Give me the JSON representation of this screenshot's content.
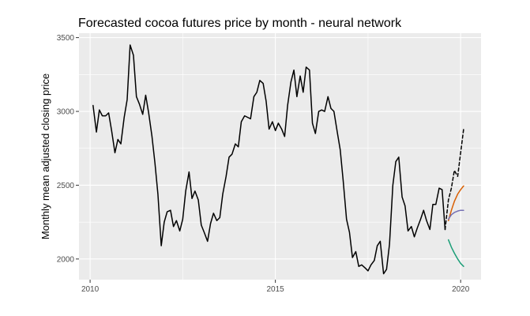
{
  "chart_data": {
    "type": "line",
    "title": "Forecasted cocoa futures price by month - neural network",
    "xlabel": "",
    "ylabel": "Monthly mean adjusted closing price",
    "xlim": [
      2009.7,
      2020.55
    ],
    "ylim": [
      1860,
      3530
    ],
    "xticks": [
      2010,
      2015,
      2020
    ],
    "xtick_labels": [
      "2010",
      "2015",
      "2020"
    ],
    "yticks": [
      2000,
      2500,
      3000,
      3500
    ],
    "ytick_labels": [
      "2000",
      "2500",
      "3000",
      "3500"
    ],
    "grid": true,
    "legend": "none",
    "colors": {
      "panel": "#ebebeb",
      "grid": "#ffffff",
      "history": "#000000",
      "dashed": "#000000",
      "orange": "#d95f02",
      "purple": "#7570b3",
      "green": "#1b9e77"
    },
    "series": [
      {
        "style": "solid",
        "color": "#000000",
        "x": [
          2010.08,
          2010.17,
          2010.25,
          2010.33,
          2010.42,
          2010.5,
          2010.58,
          2010.67,
          2010.75,
          2010.83,
          2010.92,
          2011.0,
          2011.08,
          2011.17,
          2011.25,
          2011.33,
          2011.42,
          2011.5,
          2011.58,
          2011.67,
          2011.75,
          2011.83,
          2011.92,
          2012.0,
          2012.08,
          2012.17,
          2012.25,
          2012.33,
          2012.42,
          2012.5,
          2012.58,
          2012.67,
          2012.75,
          2012.83,
          2012.92,
          2013.0,
          2013.08,
          2013.17,
          2013.25,
          2013.33,
          2013.42,
          2013.5,
          2013.58,
          2013.67,
          2013.75,
          2013.83,
          2013.92,
          2014.0,
          2014.08,
          2014.17,
          2014.25,
          2014.33,
          2014.42,
          2014.5,
          2014.58,
          2014.67,
          2014.75,
          2014.83,
          2014.92,
          2015.0,
          2015.08,
          2015.17,
          2015.25,
          2015.33,
          2015.42,
          2015.5,
          2015.58,
          2015.67,
          2015.75,
          2015.83,
          2015.92,
          2016.0,
          2016.08,
          2016.17,
          2016.25,
          2016.33,
          2016.42,
          2016.5,
          2016.58,
          2016.67,
          2016.75,
          2016.83,
          2016.92,
          2017.0,
          2017.08,
          2017.17,
          2017.25,
          2017.33,
          2017.42,
          2017.5,
          2017.58,
          2017.67,
          2017.75,
          2017.83,
          2017.92,
          2018.0,
          2018.08,
          2018.17,
          2018.25,
          2018.33,
          2018.42,
          2018.5,
          2018.58,
          2018.67,
          2018.75,
          2018.83,
          2018.92,
          2019.0,
          2019.08,
          2019.17,
          2019.25,
          2019.33,
          2019.42,
          2019.5,
          2019.58
        ],
        "y": [
          3040,
          2860,
          3010,
          2970,
          2970,
          2990,
          2870,
          2720,
          2810,
          2780,
          2960,
          3080,
          3450,
          3380,
          3100,
          3050,
          2980,
          3110,
          2990,
          2830,
          2650,
          2440,
          2090,
          2250,
          2320,
          2330,
          2220,
          2260,
          2190,
          2270,
          2460,
          2590,
          2410,
          2460,
          2400,
          2230,
          2180,
          2120,
          2240,
          2310,
          2260,
          2280,
          2440,
          2560,
          2690,
          2710,
          2780,
          2760,
          2930,
          2970,
          2960,
          2950,
          3100,
          3130,
          3210,
          3190,
          3070,
          2880,
          2930,
          2870,
          2920,
          2880,
          2830,
          3040,
          3200,
          3280,
          3100,
          3240,
          3130,
          3300,
          3280,
          2920,
          2850,
          3000,
          3010,
          3000,
          3100,
          3020,
          3000,
          2860,
          2740,
          2530,
          2270,
          2180,
          2010,
          2050,
          1950,
          1960,
          1940,
          1920,
          1960,
          1990,
          2090,
          2120,
          1900,
          1930,
          2100,
          2500,
          2660,
          2690,
          2420,
          2360,
          2190,
          2220,
          2150,
          2210,
          2270,
          2330,
          2260,
          2200,
          2370,
          2370,
          2480,
          2470,
          2200
        ]
      },
      {
        "style": "dashed",
        "color": "#000000",
        "x": [
          2019.58,
          2019.67,
          2019.75,
          2019.83,
          2019.92,
          2020.0,
          2020.08
        ],
        "y": [
          2200,
          2400,
          2480,
          2600,
          2560,
          2720,
          2880
        ]
      },
      {
        "style": "solid",
        "color": "#d95f02",
        "x": [
          2019.67,
          2019.75,
          2019.83,
          2019.92,
          2020.0,
          2020.08
        ],
        "y": [
          2260,
          2330,
          2390,
          2440,
          2470,
          2495
        ]
      },
      {
        "style": "solid",
        "color": "#7570b3",
        "x": [
          2019.67,
          2019.75,
          2019.83,
          2019.92,
          2020.0,
          2020.08
        ],
        "y": [
          2270,
          2300,
          2315,
          2325,
          2330,
          2330
        ]
      },
      {
        "style": "solid",
        "color": "#1b9e77",
        "x": [
          2019.67,
          2019.75,
          2019.83,
          2019.92,
          2020.0,
          2020.08
        ],
        "y": [
          2130,
          2080,
          2040,
          2000,
          1970,
          1950
        ]
      }
    ]
  }
}
